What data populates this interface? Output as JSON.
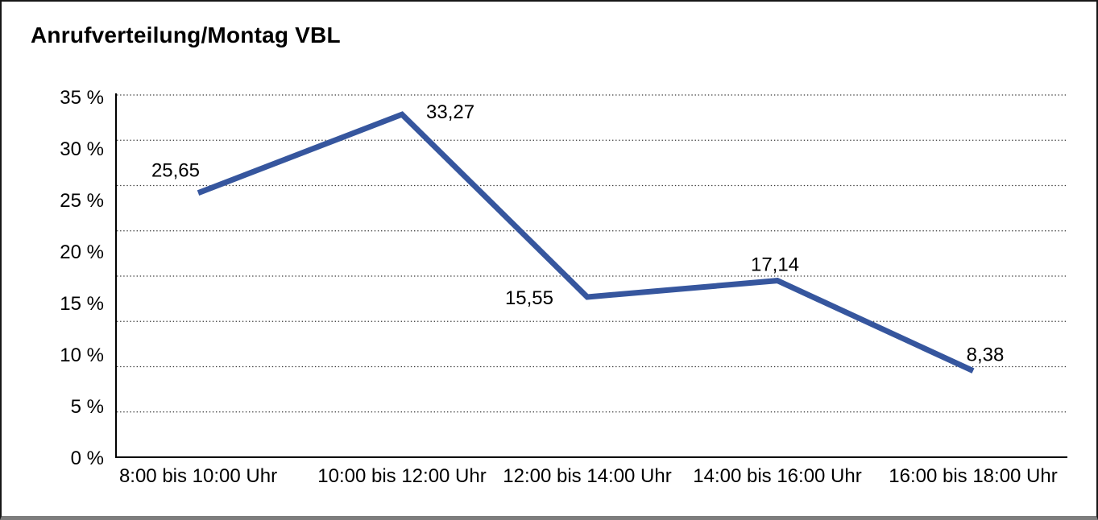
{
  "chart_data": {
    "type": "line",
    "title": "Anrufverteilung/Montag VBL",
    "categories": [
      "8:00 bis 10:00 Uhr",
      "10:00 bis 12:00 Uhr",
      "12:00 bis 14:00 Uhr",
      "14:00 bis 16:00 Uhr",
      "16:00 bis 18:00 Uhr"
    ],
    "values": [
      25.65,
      33.27,
      15.55,
      17.14,
      8.38
    ],
    "value_labels": [
      "25,65",
      "33,27",
      "15,55",
      "17,14",
      "8,38"
    ],
    "xlabel": "",
    "ylabel": "",
    "ylim": [
      0,
      35
    ],
    "ytick_step": 5,
    "ytick_labels": [
      "0 %",
      "5 %",
      "10 %",
      "15 %",
      "20 %",
      "25 %",
      "30 %",
      "35 %"
    ],
    "grid": "horizontal-dotted",
    "legend": "none",
    "line_color": "#36569E",
    "grid_color": "#3a3a3a",
    "axis_color": "#000000",
    "text_color": "#000000"
  }
}
